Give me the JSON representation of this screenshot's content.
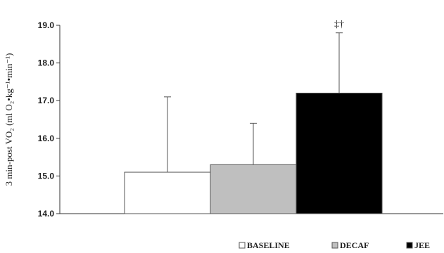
{
  "chart_data": {
    "type": "bar",
    "title": "",
    "xlabel": "",
    "ylabel": "3 min-post VO₂ (ml O₂•kg⁻¹•min⁻¹)",
    "ylim": [
      14.0,
      19.0
    ],
    "yticks": [
      "14.0",
      "15.0",
      "16.0",
      "17.0",
      "18.0",
      "19.0"
    ],
    "grid": false,
    "legend_position": "bottom-right",
    "series": [
      {
        "name": "BASELINE",
        "value": 15.1,
        "error": 2.0,
        "color": "#ffffff"
      },
      {
        "name": "DECAF",
        "value": 15.3,
        "error": 1.1,
        "color": "#bfbfbf"
      },
      {
        "name": "JEE",
        "value": 17.2,
        "error": 1.6,
        "color": "#000000",
        "annotation": "‡†"
      }
    ]
  }
}
